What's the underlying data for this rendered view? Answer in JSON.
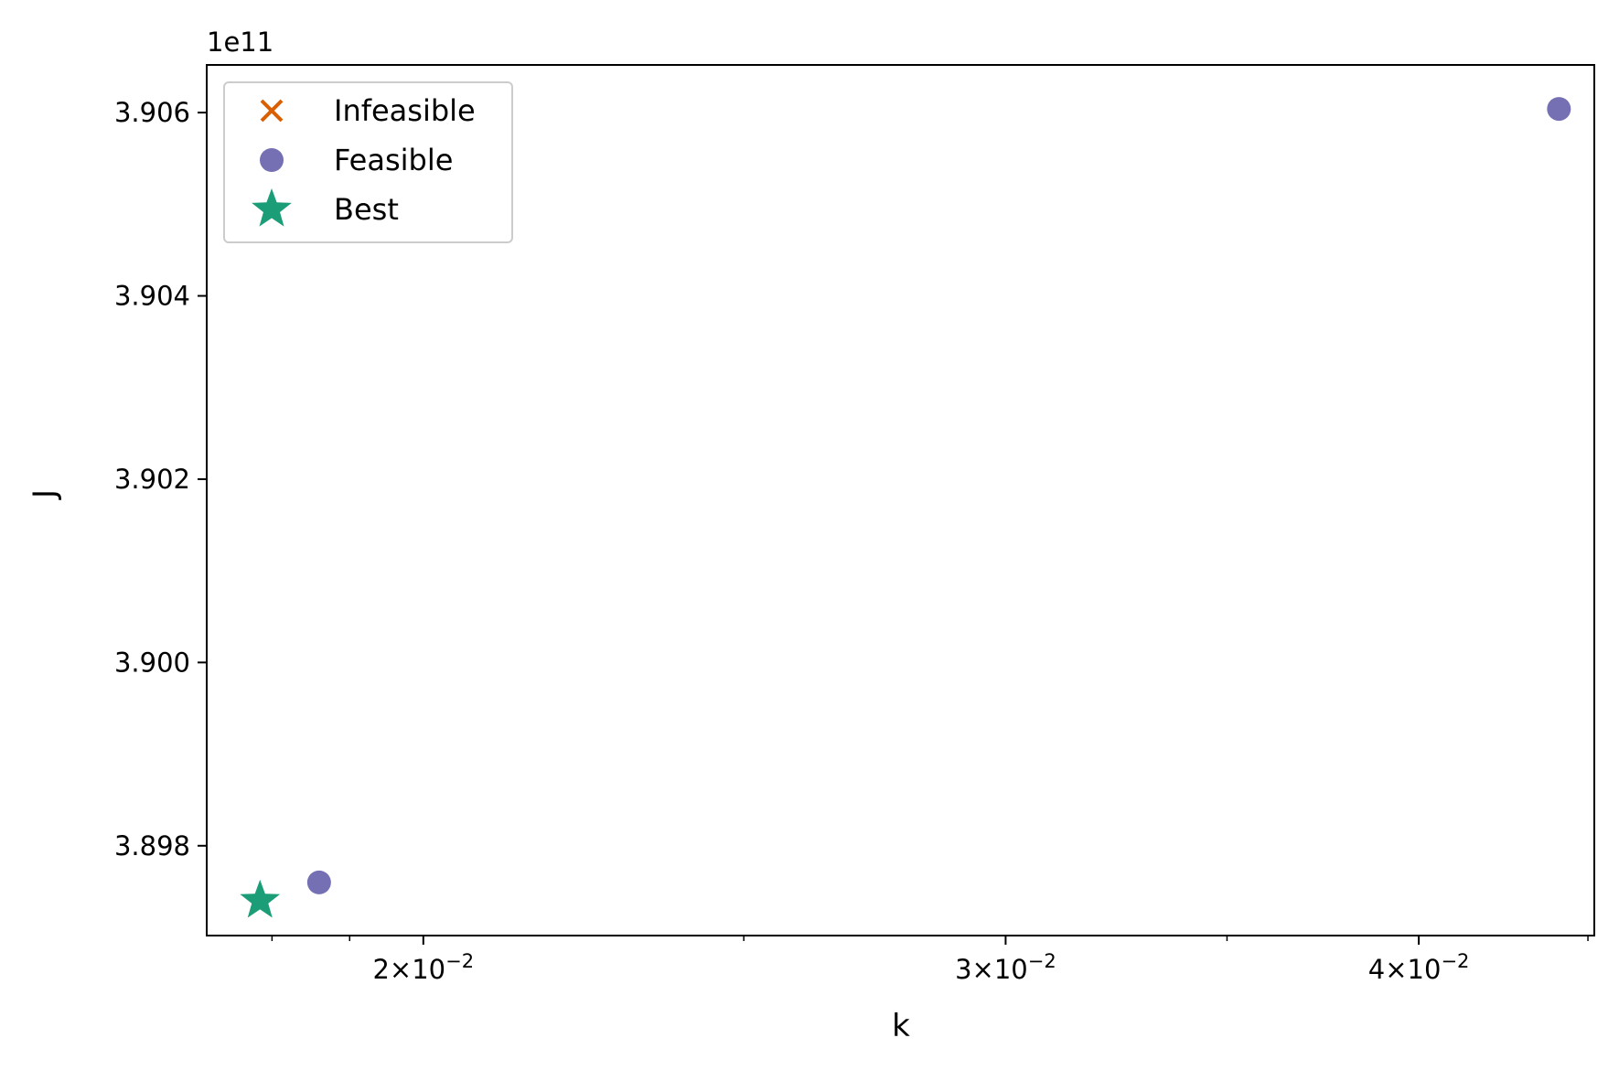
{
  "chart_data": {
    "type": "scatter",
    "xlabel": "k",
    "ylabel": "J",
    "xscale": "log",
    "xlim": [
      0.0172,
      0.0452
    ],
    "ylim": [
      389.702,
      390.652
    ],
    "y_offset_label": "1e11",
    "x_ticks": [
      {
        "value": 0.02,
        "base": "2",
        "exp": "−2"
      },
      {
        "value": 0.03,
        "base": "3",
        "exp": "−2"
      },
      {
        "value": 0.04,
        "base": "4",
        "exp": "−2"
      }
    ],
    "y_ticks": [
      {
        "value": 389.8,
        "label": "3.898"
      },
      {
        "value": 390.0,
        "label": "3.900"
      },
      {
        "value": 390.2,
        "label": "3.902"
      },
      {
        "value": 390.4,
        "label": "3.904"
      },
      {
        "value": 390.6,
        "label": "3.906"
      }
    ],
    "series": [
      {
        "name": "Infeasible",
        "marker": "x",
        "color": "#d95f02",
        "points": []
      },
      {
        "name": "Feasible",
        "marker": "o",
        "color": "#7570b3",
        "points": [
          [
            0.0186,
            389.76
          ],
          [
            0.0441,
            390.604
          ]
        ]
      },
      {
        "name": "Best",
        "marker": "star",
        "color": "#1b9e77",
        "points": [
          [
            0.01785,
            389.74
          ]
        ]
      }
    ],
    "legend": {
      "position": "upper left",
      "entries": [
        "Infeasible",
        "Feasible",
        "Best"
      ]
    },
    "grid": false
  }
}
